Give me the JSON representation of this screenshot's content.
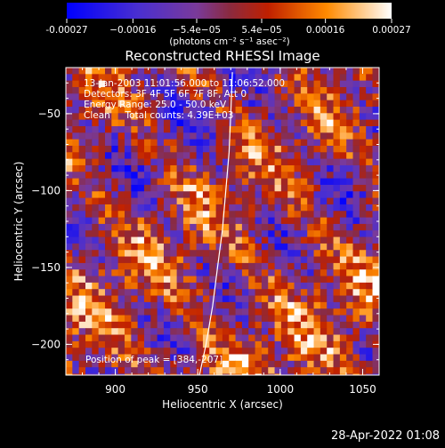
{
  "chart_data": {
    "type": "heatmap",
    "title": "Reconstructed RHESSI Image",
    "xlabel": "Heliocentric X (arcsec)",
    "ylabel": "Heliocentric Y (arcsec)",
    "xlim": [
      870,
      1060
    ],
    "ylim": [
      -220,
      -20
    ],
    "x_ticks": [
      {
        "value": 900,
        "label": "900"
      },
      {
        "value": 950,
        "label": "950"
      },
      {
        "value": 1000,
        "label": "1000"
      },
      {
        "value": 1050,
        "label": "1050"
      }
    ],
    "y_ticks": [
      {
        "value": -50,
        "label": "−50"
      },
      {
        "value": -100,
        "label": "−100"
      },
      {
        "value": -150,
        "label": "−150"
      },
      {
        "value": -200,
        "label": "−200"
      }
    ],
    "colorbar": {
      "range": [
        -0.00027,
        0.00027
      ],
      "ticks": [
        {
          "value": -0.00027,
          "label": "-0.00027"
        },
        {
          "value": -0.00016,
          "label": "−0.00016"
        },
        {
          "value": -5.4e-05,
          "label": "−5.4e−05"
        },
        {
          "value": 5.4e-05,
          "label": "5.4e−05"
        },
        {
          "value": 0.00016,
          "label": "0.00016"
        },
        {
          "value": 0.00027,
          "label": "0.00027"
        }
      ],
      "units": "(photons cm⁻² s⁻¹ asec⁻²)"
    },
    "annotations": [
      "13-Jan-2003 11:01:56.000 to 11:06:52.000",
      "Detectors: 3F 4F 5F 6F 7F 8F, Att 0",
      "Energy Range: 25.0 - 50.0 keV",
      "Clean     Total counts: 4.39E+03"
    ],
    "peak_label": "Position of peak = [384,-207]",
    "limb_curve": [
      [
        951,
        -220
      ],
      [
        955,
        -200
      ],
      [
        959,
        -175
      ],
      [
        962,
        -150
      ],
      [
        965,
        -125
      ],
      [
        967,
        -100
      ],
      [
        969,
        -75
      ],
      [
        970,
        -50
      ],
      [
        971,
        -23
      ]
    ]
  },
  "timestamp": "28-Apr-2022 01:08"
}
